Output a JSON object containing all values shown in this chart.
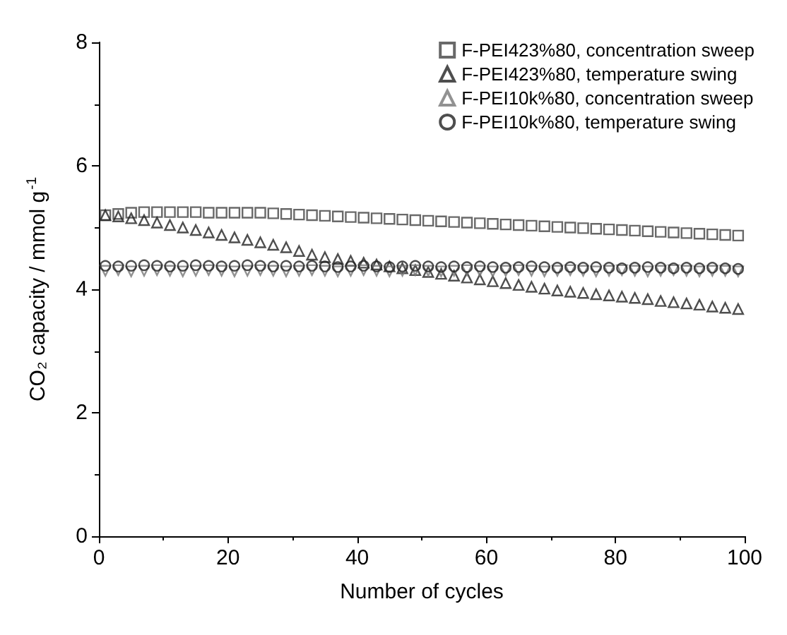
{
  "chart_data": {
    "type": "scatter",
    "xlabel": "Number of cycles",
    "ylabel": "CO₂ capacity / mmol g$^{-1}$",
    "x": [
      1,
      3,
      5,
      7,
      9,
      11,
      13,
      15,
      17,
      19,
      21,
      23,
      25,
      27,
      29,
      31,
      33,
      35,
      37,
      39,
      41,
      43,
      45,
      47,
      49,
      51,
      53,
      55,
      57,
      59,
      61,
      63,
      65,
      67,
      69,
      71,
      73,
      75,
      77,
      79,
      81,
      83,
      85,
      87,
      89,
      91,
      93,
      95,
      97,
      99
    ],
    "xlim": [
      0,
      100
    ],
    "xticks": [
      0,
      20,
      40,
      60,
      80,
      100
    ],
    "ylim": [
      0,
      8
    ],
    "yticks": [
      0,
      2,
      4,
      6,
      8
    ],
    "grid": false,
    "legend": "top right",
    "series": [
      {
        "name": "F-PEI423%80, concentration sweep",
        "color": "#444444",
        "marker": "square",
        "values": [
          5.2,
          5.22,
          5.24,
          5.25,
          5.25,
          5.25,
          5.25,
          5.25,
          5.24,
          5.24,
          5.24,
          5.24,
          5.24,
          5.23,
          5.22,
          5.21,
          5.2,
          5.19,
          5.18,
          5.17,
          5.16,
          5.15,
          5.14,
          5.13,
          5.12,
          5.11,
          5.1,
          5.09,
          5.08,
          5.07,
          5.06,
          5.05,
          5.04,
          5.03,
          5.02,
          5.01,
          5,
          4.99,
          4.98,
          4.97,
          4.96,
          4.95,
          4.94,
          4.93,
          4.92,
          4.91,
          4.9,
          4.89,
          4.88,
          4.87
        ]
      },
      {
        "name": "F-PEI423%80, temperature swing",
        "color": "#222222",
        "marker": "triangle",
        "values": [
          5.2,
          5.18,
          5.15,
          5.12,
          5.08,
          5.04,
          5,
          4.96,
          4.92,
          4.88,
          4.84,
          4.8,
          4.76,
          4.72,
          4.68,
          4.62,
          4.56,
          4.52,
          4.49,
          4.46,
          4.43,
          4.4,
          4.37,
          4.34,
          4.31,
          4.28,
          4.25,
          4.22,
          4.19,
          4.16,
          4.13,
          4.1,
          4.07,
          4.04,
          4.01,
          3.98,
          3.96,
          3.94,
          3.92,
          3.9,
          3.88,
          3.86,
          3.84,
          3.81,
          3.79,
          3.77,
          3.75,
          3.72,
          3.7,
          3.68
        ]
      },
      {
        "name": "F-PEI10k%80, concentration sweep",
        "color": "#777777",
        "marker": "triangle-down",
        "values": [
          4.3,
          4.31,
          4.29,
          4.3,
          4.31,
          4.3,
          4.29,
          4.3,
          4.31,
          4.3,
          4.29,
          4.3,
          4.31,
          4.3,
          4.29,
          4.3,
          4.31,
          4.3,
          4.29,
          4.3,
          4.31,
          4.3,
          4.29,
          4.3,
          4.31,
          4.3,
          4.29,
          4.3,
          4.31,
          4.3,
          4.29,
          4.3,
          4.31,
          4.3,
          4.29,
          4.3,
          4.31,
          4.3,
          4.29,
          4.3,
          4.31,
          4.3,
          4.29,
          4.3,
          4.31,
          4.3,
          4.29,
          4.3,
          4.3,
          4.29
        ]
      },
      {
        "name": "F-PEI10k%80, temperature swing",
        "color": "#222222",
        "marker": "circle",
        "values": [
          4.38,
          4.37,
          4.38,
          4.39,
          4.38,
          4.37,
          4.38,
          4.39,
          4.38,
          4.37,
          4.38,
          4.39,
          4.38,
          4.37,
          4.38,
          4.37,
          4.38,
          4.37,
          4.36,
          4.37,
          4.38,
          4.37,
          4.36,
          4.37,
          4.38,
          4.37,
          4.36,
          4.37,
          4.36,
          4.37,
          4.36,
          4.35,
          4.36,
          4.37,
          4.36,
          4.35,
          4.36,
          4.35,
          4.36,
          4.35,
          4.34,
          4.35,
          4.36,
          4.35,
          4.34,
          4.35,
          4.34,
          4.35,
          4.34,
          4.33
        ]
      }
    ]
  }
}
